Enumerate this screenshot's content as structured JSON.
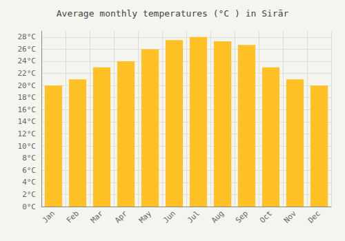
{
  "chart_data": {
    "type": "bar",
    "title": "Average monthly temperatures (°C ) in Sirār",
    "categories": [
      "Jan",
      "Feb",
      "Mar",
      "Apr",
      "May",
      "Jun",
      "Jul",
      "Aug",
      "Sep",
      "Oct",
      "Nov",
      "Dec"
    ],
    "values": [
      20,
      21,
      23,
      24,
      26,
      27.5,
      28,
      27.3,
      26.7,
      23,
      21,
      20
    ],
    "color": "#FFC125",
    "ylim": [
      0,
      29
    ],
    "yticks": [
      {
        "value": 0,
        "label": "0°C"
      },
      {
        "value": 2,
        "label": "2°C"
      },
      {
        "value": 4,
        "label": "4°C"
      },
      {
        "value": 6,
        "label": "6°C"
      },
      {
        "value": 8,
        "label": "8°C"
      },
      {
        "value": 10,
        "label": "10°C"
      },
      {
        "value": 12,
        "label": "12°C"
      },
      {
        "value": 14,
        "label": "14°C"
      },
      {
        "value": 16,
        "label": "16°C"
      },
      {
        "value": 18,
        "label": "18°C"
      },
      {
        "value": 20,
        "label": "20°C"
      },
      {
        "value": 22,
        "label": "22°C"
      },
      {
        "value": 24,
        "label": "24°C"
      },
      {
        "value": 26,
        "label": "26°C"
      },
      {
        "value": 28,
        "label": "28°C"
      }
    ],
    "grid": true
  }
}
